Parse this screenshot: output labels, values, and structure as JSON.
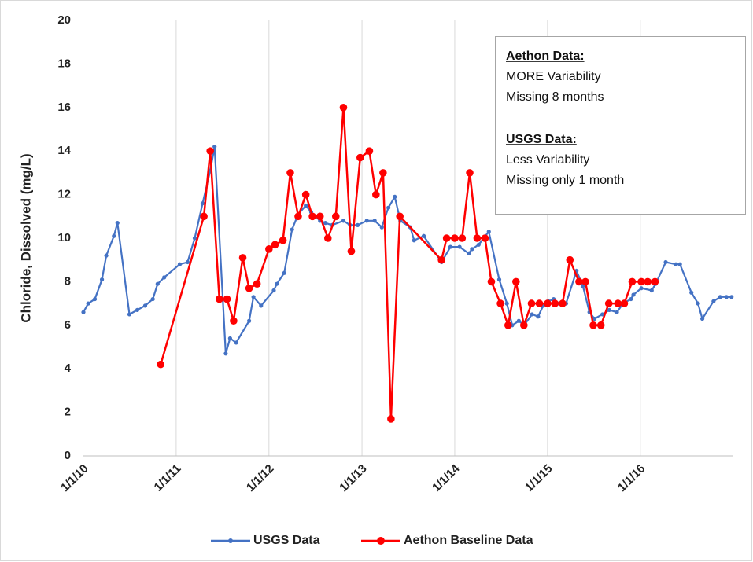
{
  "chart_data": {
    "type": "line",
    "y_label": "Chloride, Dissolved (mg/L)",
    "ylim": [
      0,
      20
    ],
    "yticks": [
      0,
      2,
      4,
      6,
      8,
      10,
      12,
      14,
      16,
      18,
      20
    ],
    "xlim": [
      "2010-01-01",
      "2017-01-01"
    ],
    "xticks": [
      {
        "value": "2010-01-01",
        "label": "1/1/10"
      },
      {
        "value": "2011-01-01",
        "label": "1/1/11"
      },
      {
        "value": "2012-01-01",
        "label": "1/1/12"
      },
      {
        "value": "2013-01-01",
        "label": "1/1/13"
      },
      {
        "value": "2014-01-01",
        "label": "1/1/14"
      },
      {
        "value": "2015-01-01",
        "label": "1/1/15"
      },
      {
        "value": "2016-01-01",
        "label": "1/1/16"
      }
    ],
    "grid": "x",
    "legend": "bottom",
    "series": [
      {
        "name": "USGS Data",
        "color": "#4472c4",
        "x": [
          "2010-01-01",
          "2010-01-20",
          "2010-02-15",
          "2010-03-15",
          "2010-04-01",
          "2010-05-01",
          "2010-05-15",
          "2010-07-01",
          "2010-08-01",
          "2010-09-01",
          "2010-10-01",
          "2010-10-20",
          "2010-11-15",
          "2011-01-15",
          "2011-02-15",
          "2011-03-15",
          "2011-04-15",
          "2011-05-15",
          "2011-06-01",
          "2011-07-15",
          "2011-08-01",
          "2011-08-25",
          "2011-10-15",
          "2011-11-01",
          "2011-12-01",
          "2012-01-20",
          "2012-02-01",
          "2012-03-01",
          "2012-04-01",
          "2012-04-25",
          "2012-05-25",
          "2012-06-15",
          "2012-07-20",
          "2012-08-10",
          "2012-09-05",
          "2012-10-20",
          "2012-11-15",
          "2012-12-15",
          "2013-01-20",
          "2013-02-20",
          "2013-03-20",
          "2013-04-15",
          "2013-05-10",
          "2013-06-01",
          "2013-07-10",
          "2013-07-25",
          "2013-09-01",
          "2013-11-10",
          "2013-12-15",
          "2014-01-20",
          "2014-02-25",
          "2014-03-10",
          "2014-04-05",
          "2014-05-15",
          "2014-06-25",
          "2014-07-25",
          "2014-08-15",
          "2014-09-10",
          "2014-10-01",
          "2014-11-01",
          "2014-11-25",
          "2014-12-15",
          "2015-01-05",
          "2015-01-25",
          "2015-02-15",
          "2015-03-15",
          "2015-04-25",
          "2015-05-20",
          "2015-06-15",
          "2015-07-05",
          "2015-08-05",
          "2015-09-01",
          "2015-10-01",
          "2015-10-25",
          "2015-11-25",
          "2015-12-05",
          "2016-01-05",
          "2016-02-15",
          "2016-03-01",
          "2016-04-10",
          "2016-05-20",
          "2016-06-05",
          "2016-07-20",
          "2016-08-15",
          "2016-09-01",
          "2016-10-15",
          "2016-11-10",
          "2016-12-05",
          "2016-12-25"
        ],
        "values": [
          6.6,
          7.0,
          7.2,
          8.1,
          9.2,
          10.1,
          10.7,
          6.5,
          6.7,
          6.9,
          7.2,
          7.9,
          8.2,
          8.8,
          8.9,
          10.0,
          11.6,
          13.1,
          14.2,
          4.7,
          5.4,
          5.2,
          6.2,
          7.3,
          6.9,
          7.6,
          7.9,
          8.4,
          10.4,
          11.1,
          11.5,
          11.2,
          10.8,
          10.7,
          10.6,
          10.8,
          10.6,
          10.6,
          10.8,
          10.8,
          10.5,
          11.4,
          11.9,
          10.8,
          10.5,
          9.9,
          10.1,
          8.9,
          9.6,
          9.6,
          9.3,
          9.5,
          9.7,
          10.3,
          8.1,
          7.0,
          6.0,
          6.2,
          6.0,
          6.5,
          6.4,
          6.9,
          7.1,
          7.2,
          7.0,
          7.0,
          8.5,
          7.8,
          6.6,
          6.3,
          6.5,
          6.7,
          6.6,
          7.0,
          7.2,
          7.4,
          7.7,
          7.6,
          7.9,
          8.9,
          8.8,
          8.8,
          7.5,
          7.0,
          6.3,
          7.1,
          7.3,
          7.3,
          7.3
        ]
      },
      {
        "name": "Aethon Baseline Data",
        "color": "#ff0000",
        "x": [
          "2010-11-01",
          "2011-04-20",
          "2011-05-15",
          "2011-06-20",
          "2011-07-20",
          "2011-08-15",
          "2011-09-20",
          "2011-10-15",
          "2011-11-15",
          "2012-01-01",
          "2012-01-25",
          "2012-02-25",
          "2012-03-25",
          "2012-04-25",
          "2012-05-25",
          "2012-06-20",
          "2012-07-20",
          "2012-08-20",
          "2012-09-20",
          "2012-10-20",
          "2012-11-20",
          "2012-12-25",
          "2013-01-30",
          "2013-02-25",
          "2013-03-25",
          "2013-04-25",
          "2013-05-30",
          "2013-11-10",
          "2013-11-30",
          "2014-01-01",
          "2014-01-30",
          "2014-03-01",
          "2014-03-30",
          "2014-04-30",
          "2014-05-25",
          "2014-06-30",
          "2014-07-30",
          "2014-08-30",
          "2014-09-30",
          "2014-10-30",
          "2014-11-30",
          "2015-01-01",
          "2015-01-30",
          "2015-03-01",
          "2015-03-30",
          "2015-05-05",
          "2015-05-30",
          "2015-06-30",
          "2015-07-30",
          "2015-08-30",
          "2015-10-05",
          "2015-10-30",
          "2015-11-30",
          "2016-01-05",
          "2016-01-30",
          "2016-02-28"
        ],
        "values": [
          4.2,
          11.0,
          14.0,
          7.2,
          7.2,
          6.2,
          9.1,
          7.7,
          7.9,
          9.5,
          9.7,
          9.9,
          13.0,
          11.0,
          12.0,
          11.0,
          11.0,
          10.0,
          11.0,
          16.0,
          9.4,
          13.7,
          14.0,
          12.0,
          13.0,
          1.7,
          11.0,
          9.0,
          10.0,
          10.0,
          10.0,
          13.0,
          10.0,
          10.0,
          8.0,
          7.0,
          6.0,
          8.0,
          6.0,
          7.0,
          7.0,
          7.0,
          7.0,
          7.0,
          9.0,
          8.0,
          8.0,
          6.0,
          6.0,
          7.0,
          7.0,
          7.0,
          8.0,
          8.0,
          8.0,
          8.0
        ]
      }
    ],
    "annotation": [
      {
        "text": "Aethon Data:",
        "heading": true
      },
      {
        "text": "MORE Variability",
        "heading": false
      },
      {
        "text": "Missing 8 months",
        "heading": false
      },
      {
        "text": "USGS Data:",
        "heading": true
      },
      {
        "text": "Less Variability",
        "heading": false
      },
      {
        "text": "Missing only 1 month",
        "heading": false
      }
    ]
  }
}
